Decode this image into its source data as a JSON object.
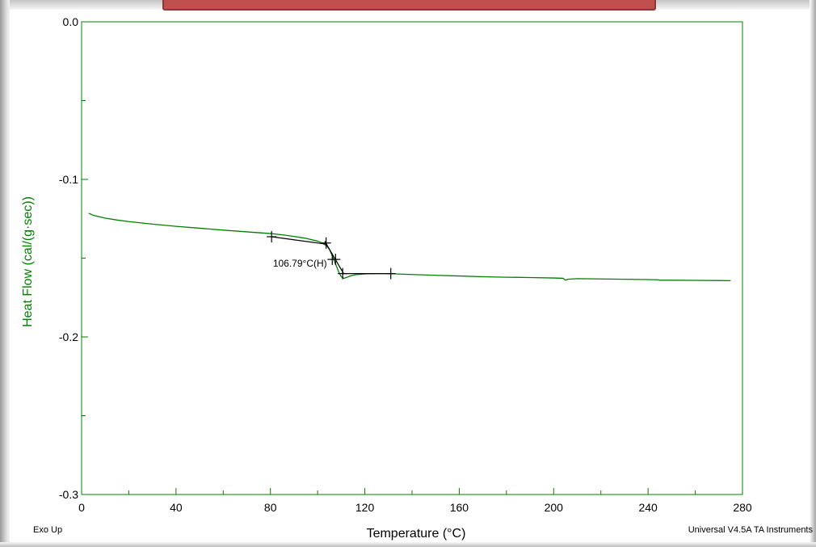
{
  "chart_data": {
    "type": "line",
    "title": "",
    "xlabel": "Temperature (°C)",
    "ylabel": "Heat Flow (cal/(g·sec))",
    "xlim": [
      0,
      280
    ],
    "ylim": [
      -0.3,
      0.0
    ],
    "x_ticks": [
      "0",
      "40",
      "80",
      "120",
      "160",
      "200",
      "240",
      "280"
    ],
    "y_ticks": [
      "0.0",
      "-0.1",
      "-0.2",
      "-0.3"
    ],
    "grid": false,
    "legend": "none",
    "series": [
      {
        "color": "#008000",
        "x": [
          3,
          5,
          10,
          15,
          20,
          30,
          40,
          50,
          60,
          70,
          80,
          85,
          90,
          95,
          100,
          102,
          104,
          105,
          106,
          107,
          108,
          109,
          110,
          111,
          112,
          114,
          116,
          120,
          125,
          130,
          140,
          150,
          160,
          170,
          180,
          190,
          200,
          204,
          205,
          206,
          210,
          220,
          230,
          240,
          244,
          245,
          250,
          260,
          270,
          275
        ],
        "y": [
          -0.1215,
          -0.1228,
          -0.1246,
          -0.1258,
          -0.1268,
          -0.1284,
          -0.1298,
          -0.131,
          -0.1322,
          -0.1333,
          -0.1344,
          -0.1352,
          -0.1362,
          -0.1374,
          -0.1392,
          -0.1404,
          -0.1425,
          -0.1445,
          -0.1478,
          -0.1515,
          -0.1552,
          -0.159,
          -0.1618,
          -0.1628,
          -0.1624,
          -0.1612,
          -0.1605,
          -0.16,
          -0.1598,
          -0.1598,
          -0.1604,
          -0.1609,
          -0.1613,
          -0.1618,
          -0.1621,
          -0.1623,
          -0.1626,
          -0.1628,
          -0.164,
          -0.1634,
          -0.163,
          -0.1632,
          -0.1634,
          -0.1636,
          -0.1637,
          -0.164,
          -0.164,
          -0.1641,
          -0.1642,
          -0.1643
        ]
      }
    ],
    "analysis": {
      "color": "#000000",
      "segments": [
        {
          "x": [
            80.5,
            104
          ],
          "y": [
            -0.1364,
            -0.1412
          ]
        },
        {
          "x": [
            103,
            111
          ],
          "y": [
            -0.1392,
            -0.1598
          ]
        },
        {
          "x": [
            110.5,
            131
          ],
          "y": [
            -0.1598,
            -0.1598
          ]
        }
      ],
      "markers": [
        {
          "x": 80.5,
          "y": -0.1364
        },
        {
          "x": 103.6,
          "y": -0.1404
        },
        {
          "x": 106.2,
          "y": -0.1508
        },
        {
          "x": 107.6,
          "y": -0.1508
        },
        {
          "x": 110.6,
          "y": -0.1598
        },
        {
          "x": 131,
          "y": -0.1598
        }
      ],
      "label": {
        "text": "106.79°C(H)",
        "x": 92.5,
        "y": -0.1555
      }
    },
    "footer_left": "Exo Up",
    "footer_right": "Universal V4.5A TA Instruments",
    "colors": {
      "curve": "#008000",
      "axes": "#008000",
      "ylabel": "#008000",
      "banner": "#c0504d"
    }
  }
}
